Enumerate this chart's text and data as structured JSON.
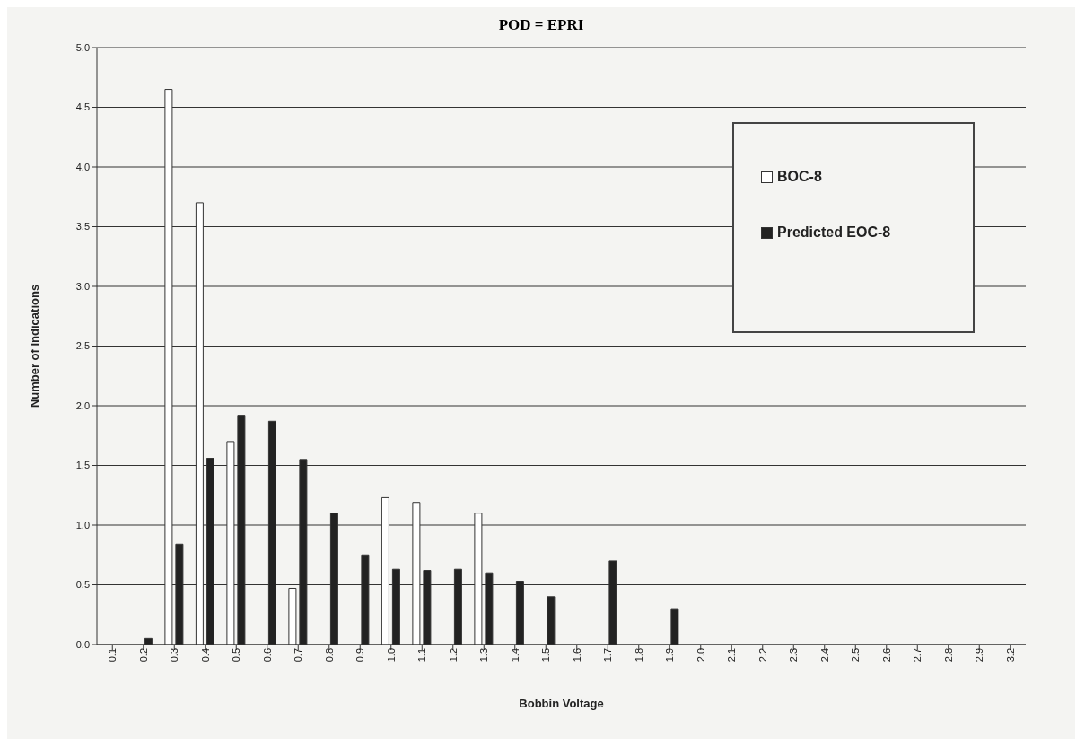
{
  "chart_data": {
    "type": "bar",
    "title": "POD = EPRI",
    "xlabel": "Bobbin Voltage",
    "ylabel": "Number of Indications",
    "categories": [
      "0.1",
      "0.2",
      "0.3",
      "0.4",
      "0.5",
      "0.6",
      "0.7",
      "0.8",
      "0.9",
      "1.0",
      "1.1",
      "1.2",
      "1.3",
      "1.4",
      "1.5",
      "1.6",
      "1.7",
      "1.8",
      "1.9",
      "2.0",
      "2.1",
      "2.2",
      "2.3",
      "2.4",
      "2.5",
      "2.6",
      "2.7",
      "2.8",
      "2.9",
      "3.2"
    ],
    "series": [
      {
        "name": "BOC-8",
        "color": "#ffffff",
        "values": [
          0,
          0,
          4.65,
          3.7,
          1.7,
          0,
          0.47,
          0,
          0,
          1.23,
          1.19,
          0,
          1.1,
          0,
          0,
          0,
          0,
          0,
          0,
          0,
          0,
          0,
          0,
          0,
          0,
          0,
          0,
          0,
          0,
          0
        ]
      },
      {
        "name": "Predicted EOC-8",
        "color": "#222222",
        "values": [
          0,
          0.05,
          0.84,
          1.56,
          1.92,
          1.87,
          1.55,
          1.1,
          0.75,
          0.63,
          0.62,
          0.63,
          0.6,
          0.53,
          0.4,
          0,
          0.7,
          0,
          0.3,
          0,
          0,
          0,
          0,
          0,
          0,
          0,
          0,
          0,
          0,
          0
        ]
      }
    ],
    "ylim": [
      0,
      5
    ],
    "yticks": [
      {
        "value": 0,
        "label": "0.0"
      },
      {
        "value": 0.5,
        "label": "0.5"
      },
      {
        "value": 1,
        "label": "1.0"
      },
      {
        "value": 1.5,
        "label": "1.5"
      },
      {
        "value": 2,
        "label": "2.0"
      },
      {
        "value": 2.5,
        "label": "2.5"
      },
      {
        "value": 3,
        "label": "3.0"
      },
      {
        "value": 3.5,
        "label": "3.5"
      },
      {
        "value": 4,
        "label": "4.0"
      },
      {
        "value": 4.5,
        "label": "4.5"
      },
      {
        "value": 5,
        "label": "5.0"
      }
    ],
    "grid": "y",
    "legend": "top right"
  }
}
